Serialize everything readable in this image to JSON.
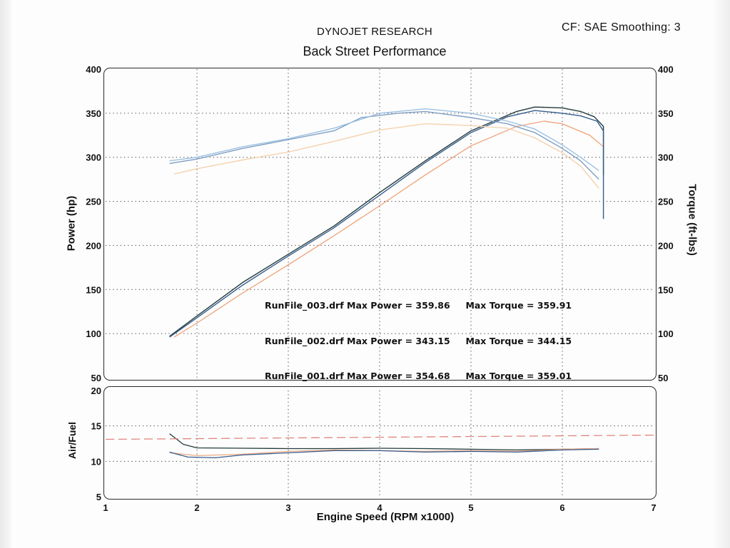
{
  "header": {
    "brand": "DYNOJET RESEARCH",
    "subtitle": "Back Street Performance",
    "settings": "CF: SAE  Smoothing: 3"
  },
  "axes": {
    "power_label": "Power (hp)",
    "torque_label": "Torque (ft-lbs)",
    "afr_label": "Air/Fuel",
    "x_label": "Engine Speed (RPM x1000)"
  },
  "legend": [
    {
      "name": "RunFile_003.drf",
      "power_text": "Max Power = 359.86",
      "torque_text": "Max Torque = 359.91"
    },
    {
      "name": "RunFile_002.drf",
      "power_text": "Max Power = 343.15",
      "torque_text": "Max Torque = 344.15"
    },
    {
      "name": "RunFile_001.drf",
      "power_text": "Max Power = 354.68",
      "torque_text": "Max Torque = 359.01"
    }
  ],
  "colors": {
    "run_003_power": "#223a3a",
    "run_002_power": "#f0a882",
    "run_001_power": "#355c8e",
    "run_003_torque": "#7f9fc2",
    "run_002_torque": "#f5d2ad",
    "run_001_torque": "#9cc0e3",
    "afr_target": "#e0857c"
  },
  "chart_data": [
    {
      "type": "line",
      "title": "Back Street Performance",
      "xlabel": "Engine Speed (RPM x1000)",
      "ylabel": "Power (hp)",
      "ylabel_right": "Torque (ft-lbs)",
      "xlim": [
        1,
        7
      ],
      "ylim": [
        50,
        400
      ],
      "ylim_right": [
        50,
        400
      ],
      "x_ticks": [
        "1",
        "2",
        "3",
        "4",
        "5",
        "6",
        "7"
      ],
      "y_ticks": [
        "400",
        "350",
        "300",
        "250",
        "200",
        "150",
        "100",
        "50"
      ],
      "grid": true,
      "series": [
        {
          "name": "RunFile_003.drf",
          "kind": "power",
          "points": [
            [
              1.7,
              97
            ],
            [
              2,
              120
            ],
            [
              2.5,
              158
            ],
            [
              3,
              190
            ],
            [
              3.5,
              222
            ],
            [
              4,
              260
            ],
            [
              4.5,
              296
            ],
            [
              5,
              330
            ],
            [
              5.5,
              352
            ],
            [
              5.7,
              357
            ],
            [
              6,
              356
            ],
            [
              6.2,
              352
            ],
            [
              6.35,
              346
            ],
            [
              6.45,
              335
            ],
            [
              6.45,
              280
            ]
          ]
        },
        {
          "name": "RunFile_002.drf",
          "kind": "power",
          "points": [
            [
              1.75,
              96
            ],
            [
              2,
              112
            ],
            [
              2.5,
              146
            ],
            [
              3,
              178
            ],
            [
              3.5,
              211
            ],
            [
              4,
              245
            ],
            [
              4.5,
              280
            ],
            [
              5,
              313
            ],
            [
              5.5,
              335
            ],
            [
              5.8,
              341
            ],
            [
              6,
              338
            ],
            [
              6.3,
              325
            ],
            [
              6.45,
              312
            ]
          ]
        },
        {
          "name": "RunFile_001.drf",
          "kind": "power",
          "points": [
            [
              1.7,
              96
            ],
            [
              2,
              118
            ],
            [
              2.5,
              155
            ],
            [
              3,
              188
            ],
            [
              3.5,
              220
            ],
            [
              4,
              257
            ],
            [
              4.5,
              294
            ],
            [
              5,
              328
            ],
            [
              5.4,
              346
            ],
            [
              5.7,
              353
            ],
            [
              6,
              350
            ],
            [
              6.2,
              347
            ],
            [
              6.38,
              341
            ],
            [
              6.45,
              330
            ],
            [
              6.45,
              230
            ]
          ]
        },
        {
          "name": "RunFile_003.drf",
          "kind": "torque",
          "points": [
            [
              1.7,
              293
            ],
            [
              2,
              298
            ],
            [
              2.5,
              310
            ],
            [
              3,
              320
            ],
            [
              3.5,
              330
            ],
            [
              3.8,
              345
            ],
            [
              4.2,
              350
            ],
            [
              4.5,
              352
            ],
            [
              5,
              345
            ],
            [
              5.4,
              338
            ],
            [
              5.7,
              328
            ],
            [
              6,
              310
            ],
            [
              6.2,
              296
            ],
            [
              6.4,
              275
            ]
          ]
        },
        {
          "name": "RunFile_002.drf",
          "kind": "torque",
          "points": [
            [
              1.75,
              281
            ],
            [
              2,
              287
            ],
            [
              2.5,
              297
            ],
            [
              3,
              306
            ],
            [
              3.5,
              318
            ],
            [
              4,
              331
            ],
            [
              4.5,
              338
            ],
            [
              5,
              336
            ],
            [
              5.4,
              333
            ],
            [
              5.7,
              322
            ],
            [
              6,
              305
            ],
            [
              6.2,
              290
            ],
            [
              6.4,
              265
            ]
          ]
        },
        {
          "name": "RunFile_001.drf",
          "kind": "torque",
          "points": [
            [
              1.7,
              296
            ],
            [
              2,
              300
            ],
            [
              2.5,
              312
            ],
            [
              3,
              321
            ],
            [
              3.5,
              333
            ],
            [
              4,
              350
            ],
            [
              4.5,
              355
            ],
            [
              5,
              350
            ],
            [
              5.4,
              341
            ],
            [
              5.7,
              332
            ],
            [
              6,
              314
            ],
            [
              6.2,
              300
            ],
            [
              6.4,
              285
            ]
          ]
        }
      ]
    },
    {
      "type": "line",
      "xlabel": "Engine Speed (RPM x1000)",
      "ylabel": "Air/Fuel",
      "xlim": [
        1,
        7
      ],
      "ylim": [
        5,
        20
      ],
      "y_ticks": [
        "20",
        "15",
        "10",
        "5"
      ],
      "grid": true,
      "series": [
        {
          "name": "RunFile_003.drf",
          "points": [
            [
              1.7,
              13.9
            ],
            [
              1.85,
              12.4
            ],
            [
              2,
              11.9
            ],
            [
              2.5,
              11.85
            ],
            [
              3,
              11.8
            ],
            [
              3.5,
              11.8
            ],
            [
              4,
              11.85
            ],
            [
              4.5,
              11.8
            ],
            [
              5,
              11.7
            ],
            [
              5.5,
              11.6
            ],
            [
              6,
              11.7
            ],
            [
              6.4,
              11.8
            ]
          ]
        },
        {
          "name": "RunFile_002.drf",
          "points": [
            [
              1.7,
              11.2
            ],
            [
              2,
              10.8
            ],
            [
              2.5,
              11.0
            ],
            [
              3,
              11.4
            ],
            [
              3.5,
              11.6
            ],
            [
              4,
              11.5
            ],
            [
              4.5,
              11.4
            ],
            [
              5,
              11.5
            ],
            [
              5.5,
              11.4
            ],
            [
              6,
              11.7
            ],
            [
              6.4,
              11.8
            ]
          ]
        },
        {
          "name": "RunFile_001.drf",
          "points": [
            [
              1.7,
              11.3
            ],
            [
              1.9,
              10.6
            ],
            [
              2.2,
              10.5
            ],
            [
              2.5,
              10.9
            ],
            [
              3,
              11.2
            ],
            [
              3.5,
              11.5
            ],
            [
              4,
              11.5
            ],
            [
              4.5,
              11.3
            ],
            [
              5,
              11.4
            ],
            [
              5.5,
              11.3
            ],
            [
              6,
              11.6
            ],
            [
              6.4,
              11.7
            ]
          ]
        },
        {
          "name": "",
          "kind": "target",
          "points": [
            [
              1,
              13.1
            ],
            [
              7,
              13.7
            ]
          ]
        }
      ]
    }
  ]
}
